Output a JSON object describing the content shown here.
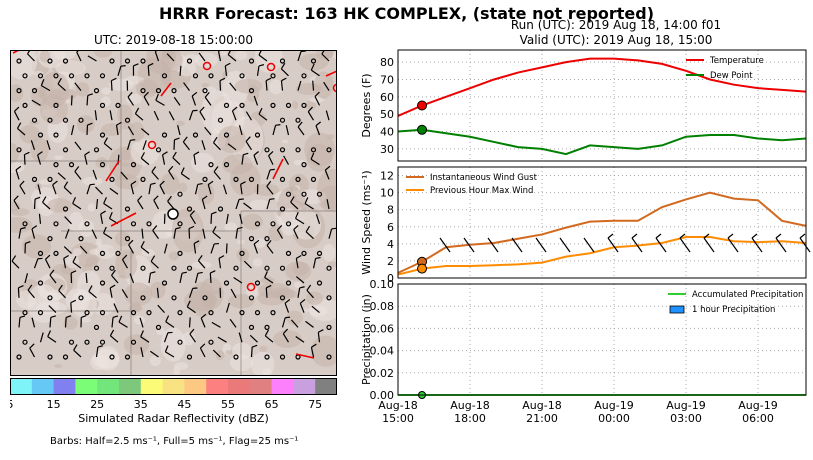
{
  "suptitle": "HRRR Forecast: 163 HK COMPLEX, (state not reported)",
  "map": {
    "title": "UTC: 2019-08-18 15:00:00",
    "colorbar_label": "Simulated Radar Reflectivity (dBZ)",
    "colorbar_ticks": [
      "5",
      "15",
      "25",
      "35",
      "45",
      "55",
      "65",
      "75"
    ],
    "colorbar_colors": [
      "#7ef4f8",
      "#66c8f5",
      "#8080f0",
      "#7cfd78",
      "#72e67a",
      "#7ec87c",
      "#fbfb78",
      "#f8e282",
      "#fcc882",
      "#fc8080",
      "#ea7a7a",
      "#e08080",
      "#fc80fc",
      "#c8a0e0",
      "#808080"
    ],
    "barbs_note": "Barbs: Half=2.5 ms⁻¹, Full=5 ms⁻¹, Flag=25 ms⁻¹"
  },
  "run": {
    "line1": "Run (UTC): 2019 Aug 18, 14:00 f01",
    "line2": "Valid (UTC): 2019 Aug 18, 15:00"
  },
  "chart_data": [
    {
      "type": "line",
      "ylabel": "Degrees (F)",
      "ylim": [
        23,
        87
      ],
      "yticks": [
        30,
        40,
        50,
        60,
        70,
        80
      ],
      "x_hours": [
        0,
        1,
        2,
        3,
        4,
        5,
        6,
        7,
        8,
        9,
        10,
        11,
        12,
        13,
        14,
        15,
        16,
        17
      ],
      "series": [
        {
          "name": "Temperature",
          "color": "#ee0000",
          "values": [
            49,
            55,
            60,
            65,
            70,
            74,
            77,
            80,
            82,
            82,
            81,
            79,
            75,
            70,
            67,
            65,
            64,
            63
          ]
        },
        {
          "name": "Dew Point",
          "color": "#008000",
          "values": [
            40,
            41,
            39,
            37,
            34,
            31,
            30,
            27,
            32,
            31,
            30,
            32,
            37,
            38,
            38,
            36,
            35,
            36
          ]
        }
      ],
      "legend": "top-right"
    },
    {
      "type": "line",
      "ylabel": "Wind Speed (ms⁻¹)",
      "ylim": [
        0,
        13
      ],
      "yticks": [
        0,
        2,
        4,
        6,
        8,
        10,
        12
      ],
      "x_hours": [
        0,
        1,
        2,
        3,
        4,
        5,
        6,
        7,
        8,
        9,
        10,
        11,
        12,
        13,
        14,
        15,
        16,
        17
      ],
      "series": [
        {
          "name": "Instantaneous Wind Gust",
          "color": "#d2691e",
          "values": [
            0.6,
            1.9,
            3.6,
            3.9,
            4.1,
            4.6,
            5.1,
            5.9,
            6.6,
            6.7,
            6.7,
            8.3,
            9.2,
            10,
            9.3,
            9.1,
            6.7,
            6.1
          ]
        },
        {
          "name": "Previous Hour Max Wind",
          "color": "#ff8c00",
          "values": [
            0.4,
            1.1,
            1.4,
            1.4,
            1.5,
            1.6,
            1.8,
            2.5,
            2.9,
            3.6,
            3.8,
            4.1,
            4.8,
            4.8,
            4.3,
            4.2,
            4.3,
            4.1
          ]
        }
      ],
      "legend": "top-left"
    },
    {
      "type": "bar",
      "ylabel": "Precipitation (in)",
      "ylim": [
        0,
        0.1
      ],
      "yticks": [
        "0.00",
        "0.02",
        "0.04",
        "0.06",
        "0.08",
        "0.10"
      ],
      "x_hours": [
        0,
        1,
        2,
        3,
        4,
        5,
        6,
        7,
        8,
        9,
        10,
        11,
        12,
        13,
        14,
        15,
        16,
        17
      ],
      "series": [
        {
          "name": "Accumulated Precipitation",
          "color": "#32cd32",
          "values": [
            0,
            0,
            0,
            0,
            0,
            0,
            0,
            0,
            0,
            0,
            0,
            0,
            0,
            0,
            0,
            0,
            0,
            0
          ]
        },
        {
          "name": "1 hour Precipitation",
          "color": "#1e90ff",
          "values": [
            0,
            0,
            0,
            0,
            0,
            0,
            0,
            0,
            0,
            0,
            0,
            0,
            0,
            0,
            0,
            0,
            0,
            0
          ]
        }
      ],
      "legend": "top-right"
    }
  ],
  "xticks": [
    {
      "hour": 0,
      "date": "Aug-18",
      "time": "15:00"
    },
    {
      "hour": 3,
      "date": "Aug-18",
      "time": "18:00"
    },
    {
      "hour": 6,
      "date": "Aug-18",
      "time": "21:00"
    },
    {
      "hour": 9,
      "date": "Aug-19",
      "time": "00:00"
    },
    {
      "hour": 12,
      "date": "Aug-19",
      "time": "03:00"
    },
    {
      "hour": 15,
      "date": "Aug-19",
      "time": "06:00"
    }
  ]
}
